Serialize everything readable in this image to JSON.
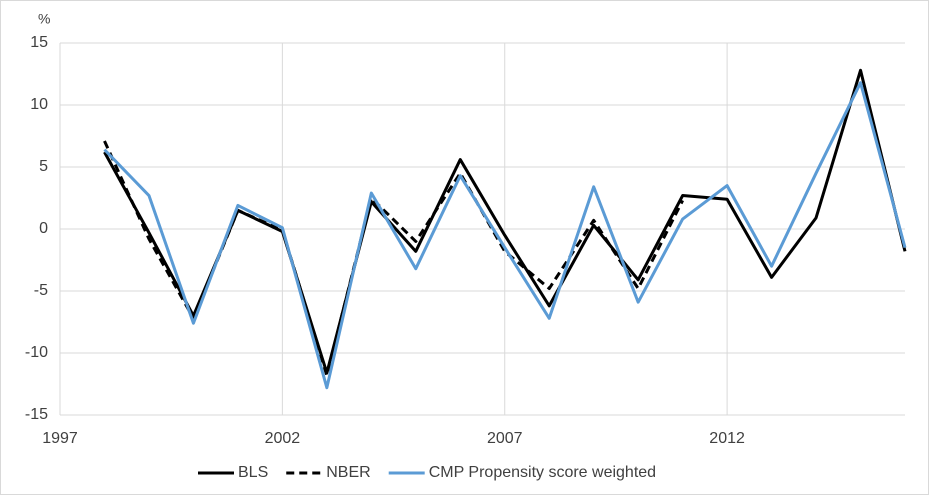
{
  "chart_data": {
    "type": "line",
    "y_label": "%",
    "x": [
      1998,
      1999,
      2000,
      2001,
      2002,
      2003,
      2004,
      2005,
      2006,
      2007,
      2008,
      2009,
      2010,
      2011,
      2012,
      2013,
      2014,
      2015,
      2016
    ],
    "series": [
      {
        "name": "BLS",
        "color": "#000000",
        "line_style": "solid",
        "values": [
          6.2,
          -0.3,
          -7.0,
          1.5,
          -0.2,
          -11.6,
          2.2,
          -1.8,
          5.6,
          -0.5,
          -6.2,
          0.3,
          -4.1,
          2.7,
          2.4,
          -3.9,
          0.9,
          12.8,
          -1.8
        ]
      },
      {
        "name": "NBER",
        "color": "#000000",
        "line_style": "dashed",
        "values": [
          7.1,
          -0.8,
          -7.2,
          1.5,
          -0.1,
          -11.8,
          2.5,
          -1.0,
          4.5,
          -1.8,
          -4.8,
          0.7,
          -4.8,
          2.3,
          null,
          null,
          null,
          null,
          null
        ]
      },
      {
        "name": "CMP Propensity score weighted",
        "color": "#5b9bd5",
        "line_style": "solid",
        "values": [
          6.4,
          2.7,
          -7.6,
          1.9,
          0.1,
          -12.8,
          2.9,
          -3.2,
          4.3,
          -1.5,
          -7.2,
          3.4,
          -5.9,
          0.8,
          3.5,
          -3.0,
          4.5,
          11.8,
          -1.5
        ]
      }
    ],
    "xlim": [
      1997,
      2016
    ],
    "xticks": [
      1997,
      2002,
      2007,
      2012
    ],
    "ylim": [
      -15,
      15
    ],
    "yticks": [
      -15,
      -10,
      -5,
      0,
      5,
      10,
      15
    ],
    "grid": true,
    "legend": "bottom"
  }
}
